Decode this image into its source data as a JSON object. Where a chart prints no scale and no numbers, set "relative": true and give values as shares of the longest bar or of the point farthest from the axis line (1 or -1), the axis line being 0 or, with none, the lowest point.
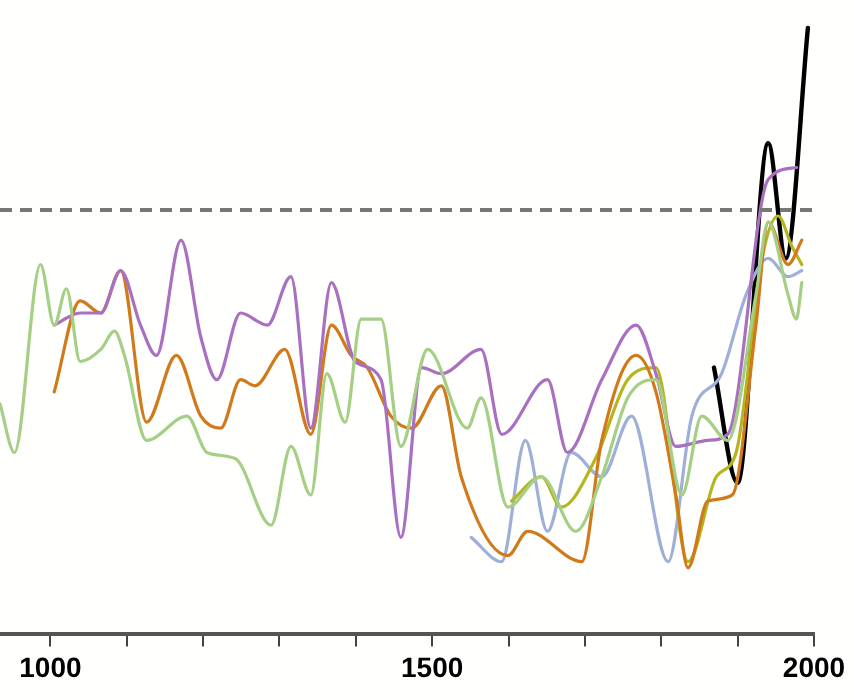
{
  "chart_data": {
    "type": "line",
    "relative": true,
    "xlim": [
      934,
      2000
    ],
    "xticks": [
      {
        "value": 1000,
        "label": "1000"
      },
      {
        "value": 1100,
        "label": null
      },
      {
        "value": 1200,
        "label": null
      },
      {
        "value": 1300,
        "label": null
      },
      {
        "value": 1400,
        "label": null
      },
      {
        "value": 1500,
        "label": "1500"
      },
      {
        "value": 1600,
        "label": null
      },
      {
        "value": 1700,
        "label": null
      },
      {
        "value": 1800,
        "label": null
      },
      {
        "value": 1900,
        "label": null
      },
      {
        "value": 2000,
        "label": "2000"
      }
    ],
    "grid": false,
    "legend": false,
    "marker": "none",
    "line_style": "solid",
    "ref_lines": [
      {
        "axis": "y",
        "value": 0.7,
        "color": "#777777",
        "line_style": "dashed"
      }
    ],
    "series": [
      {
        "color": "#a6cf86",
        "x": [
          934,
          953,
          987,
          1005,
          1021,
          1039,
          1066,
          1084,
          1097,
          1126,
          1179,
          1205,
          1242,
          1289,
          1315,
          1341,
          1362,
          1386,
          1407,
          1433,
          1459,
          1494,
          1546,
          1564,
          1599,
          1643,
          1688,
          1722,
          1756,
          1793,
          1827,
          1853,
          1887,
          1924,
          1940,
          1966,
          1977,
          1984
        ],
        "values": [
          0.38,
          0.3,
          0.61,
          0.51,
          0.57,
          0.45,
          0.47,
          0.5,
          0.46,
          0.32,
          0.36,
          0.3,
          0.29,
          0.18,
          0.31,
          0.23,
          0.43,
          0.35,
          0.52,
          0.52,
          0.31,
          0.47,
          0.34,
          0.39,
          0.21,
          0.26,
          0.17,
          0.26,
          0.39,
          0.42,
          0.23,
          0.36,
          0.32,
          0.56,
          0.68,
          0.56,
          0.52,
          0.58
        ]
      },
      {
        "color": "#a970c0",
        "x": [
          1005,
          1039,
          1066,
          1092,
          1118,
          1139,
          1171,
          1197,
          1218,
          1249,
          1284,
          1315,
          1341,
          1368,
          1399,
          1433,
          1459,
          1486,
          1512,
          1564,
          1591,
          1651,
          1677,
          1722,
          1767,
          1793,
          1819,
          1861,
          1887,
          1940,
          1977
        ],
        "values": [
          0.51,
          0.53,
          0.53,
          0.6,
          0.51,
          0.46,
          0.65,
          0.49,
          0.42,
          0.53,
          0.51,
          0.59,
          0.34,
          0.58,
          0.45,
          0.42,
          0.16,
          0.44,
          0.43,
          0.47,
          0.33,
          0.42,
          0.3,
          0.42,
          0.51,
          0.43,
          0.31,
          0.32,
          0.33,
          0.75,
          0.77
        ]
      },
      {
        "color": "#d07a1c",
        "x": [
          1005,
          1039,
          1066,
          1092,
          1126,
          1165,
          1197,
          1223,
          1249,
          1268,
          1307,
          1341,
          1368,
          1394,
          1415,
          1446,
          1473,
          1512,
          1538,
          1599,
          1625,
          1696,
          1722,
          1767,
          1793,
          1819,
          1835,
          1861,
          1893,
          1924,
          1940,
          1966,
          1984
        ],
        "values": [
          0.4,
          0.55,
          0.53,
          0.6,
          0.35,
          0.46,
          0.36,
          0.34,
          0.42,
          0.41,
          0.47,
          0.33,
          0.51,
          0.46,
          0.44,
          0.36,
          0.34,
          0.41,
          0.26,
          0.13,
          0.17,
          0.12,
          0.32,
          0.46,
          0.4,
          0.23,
          0.11,
          0.22,
          0.23,
          0.51,
          0.68,
          0.61,
          0.65
        ]
      },
      {
        "color": "#b5b520",
        "x": [
          1604,
          1643,
          1669,
          1714,
          1756,
          1793,
          1835,
          1872,
          1898,
          1932,
          1953,
          1971,
          1984
        ],
        "values": [
          0.22,
          0.26,
          0.21,
          0.29,
          0.42,
          0.44,
          0.12,
          0.26,
          0.3,
          0.62,
          0.69,
          0.64,
          0.61
        ]
      },
      {
        "color": "#9fb0d8",
        "x": [
          1551,
          1591,
          1622,
          1651,
          1682,
          1722,
          1761,
          1809,
          1840,
          1879,
          1911,
          1940,
          1966,
          1984
        ],
        "values": [
          0.16,
          0.12,
          0.32,
          0.17,
          0.3,
          0.26,
          0.36,
          0.12,
          0.36,
          0.43,
          0.56,
          0.62,
          0.59,
          0.6
        ]
      },
      {
        "color": "#000000",
        "x": [
          1869,
          1900,
          1940,
          1963,
          1992
        ],
        "values": [
          0.44,
          0.25,
          0.81,
          0.62,
          1.0
        ]
      }
    ]
  }
}
